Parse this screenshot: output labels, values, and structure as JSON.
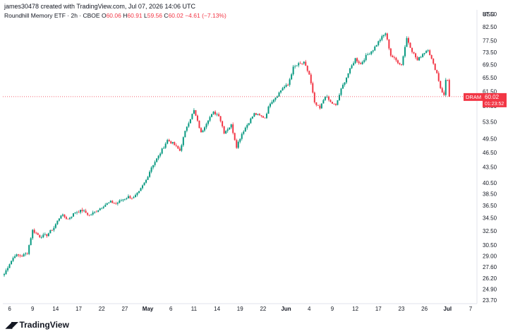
{
  "header": {
    "created_by": "james30478 created with TradingView.com, Jul 07, 2026 14:06 UTC"
  },
  "symbol": {
    "name": "Roundhill Memory ETF · 2h · CBOE",
    "o_label": "O",
    "o_value": "60.06",
    "h_label": "H",
    "h_value": "60.91",
    "l_label": "L",
    "l_value": "59.56",
    "c_label": "C",
    "c_value": "60.02",
    "change": "−4.61 (−7.13%)"
  },
  "price_scale": {
    "currency": "USD"
  },
  "price_tag": {
    "ticker": "DRAM",
    "price": "60.02",
    "countdown": "01:23:52"
  },
  "footer": {
    "brand": "TradingView"
  },
  "colors": {
    "up": "#089981",
    "down": "#f23645",
    "grid": "#e0e3eb",
    "text": "#131722"
  },
  "chart_data": {
    "type": "candlestick",
    "y_scale": "log",
    "grid": false,
    "ylim": [
      23.7,
      87.5
    ],
    "y_ticks": [
      87.5,
      82.5,
      77.5,
      73.5,
      69.5,
      65.5,
      61.5,
      57.5,
      53.5,
      49.5,
      46.5,
      43.5,
      40.5,
      38.5,
      36.5,
      34.5,
      32.5,
      30.5,
      29.0,
      27.6,
      26.2,
      24.9,
      23.7
    ],
    "x_ticks": [
      {
        "label": "6",
        "i": 3
      },
      {
        "label": "9",
        "i": 16
      },
      {
        "label": "14",
        "i": 29
      },
      {
        "label": "17",
        "i": 42
      },
      {
        "label": "22",
        "i": 55
      },
      {
        "label": "27",
        "i": 68
      },
      {
        "label": "May",
        "i": 81,
        "bold": true
      },
      {
        "label": "6",
        "i": 94
      },
      {
        "label": "11",
        "i": 107
      },
      {
        "label": "14",
        "i": 120
      },
      {
        "label": "19",
        "i": 133
      },
      {
        "label": "22",
        "i": 146
      },
      {
        "label": "Jun",
        "i": 159,
        "bold": true
      },
      {
        "label": "4",
        "i": 172
      },
      {
        "label": "9",
        "i": 185
      },
      {
        "label": "12",
        "i": 198
      },
      {
        "label": "17",
        "i": 211
      },
      {
        "label": "23",
        "i": 224
      },
      {
        "label": "26",
        "i": 237
      },
      {
        "label": "Jul",
        "i": 250,
        "bold": true
      },
      {
        "label": "7",
        "i": 263
      }
    ],
    "last_price": 60.02,
    "anchors": [
      [
        0,
        26.7
      ],
      [
        3,
        28.0
      ],
      [
        6,
        29.1
      ],
      [
        10,
        29.0
      ],
      [
        13,
        29.4
      ],
      [
        16,
        32.6
      ],
      [
        20,
        31.7
      ],
      [
        24,
        31.9
      ],
      [
        28,
        33.0
      ],
      [
        32,
        35.0
      ],
      [
        36,
        34.3
      ],
      [
        40,
        35.4
      ],
      [
        44,
        35.7
      ],
      [
        48,
        34.9
      ],
      [
        52,
        35.6
      ],
      [
        56,
        36.5
      ],
      [
        60,
        37.1
      ],
      [
        63,
        36.8
      ],
      [
        66,
        37.4
      ],
      [
        70,
        38.0
      ],
      [
        73,
        37.8
      ],
      [
        76,
        38.8
      ],
      [
        80,
        41.0
      ],
      [
        83,
        43.5
      ],
      [
        87,
        45.7
      ],
      [
        92,
        49.2
      ],
      [
        95,
        48.5
      ],
      [
        99,
        46.9
      ],
      [
        103,
        52.5
      ],
      [
        107,
        56.3
      ],
      [
        111,
        50.8
      ],
      [
        115,
        54.1
      ],
      [
        118,
        55.8
      ],
      [
        121,
        55.2
      ],
      [
        124,
        51.0
      ],
      [
        128,
        52.7
      ],
      [
        131,
        47.8
      ],
      [
        134,
        50.7
      ],
      [
        138,
        53.5
      ],
      [
        141,
        55.5
      ],
      [
        144,
        55.0
      ],
      [
        147,
        54.5
      ],
      [
        150,
        58.4
      ],
      [
        154,
        60.4
      ],
      [
        157,
        62.5
      ],
      [
        160,
        63.3
      ],
      [
        163,
        68.5
      ],
      [
        166,
        69.6
      ],
      [
        169,
        70.0
      ],
      [
        172,
        66.4
      ],
      [
        175,
        58.2
      ],
      [
        178,
        56.8
      ],
      [
        181,
        60.3
      ],
      [
        184,
        58.5
      ],
      [
        187,
        57.6
      ],
      [
        190,
        62.0
      ],
      [
        194,
        66.8
      ],
      [
        198,
        71.4
      ],
      [
        201,
        69.6
      ],
      [
        204,
        72.2
      ],
      [
        208,
        74.4
      ],
      [
        212,
        78.0
      ],
      [
        215,
        80.2
      ],
      [
        218,
        72.5
      ],
      [
        221,
        70.8
      ],
      [
        224,
        69.4
      ],
      [
        227,
        78.4
      ],
      [
        230,
        74.0
      ],
      [
        233,
        70.8
      ],
      [
        236,
        73.0
      ],
      [
        239,
        74.6
      ],
      [
        242,
        69.5
      ],
      [
        244,
        66.8
      ],
      [
        246,
        62.5
      ],
      [
        248,
        60.3
      ],
      [
        249,
        64.8
      ],
      [
        250,
        65.0
      ],
      [
        251,
        60.02
      ]
    ],
    "pane_end_i": 265
  }
}
